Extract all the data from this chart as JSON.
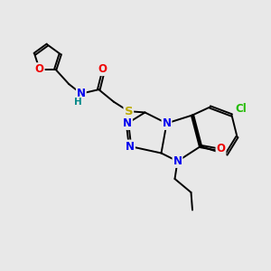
{
  "background_color": "#e8e8e8",
  "fig_size": [
    3.0,
    3.0
  ],
  "dpi": 100,
  "atom_colors": {
    "C": "#000000",
    "N": "#0000ee",
    "O": "#ee0000",
    "S": "#bbaa00",
    "Cl": "#22bb00",
    "H": "#008888"
  },
  "bond_color": "#000000",
  "bond_width": 1.4,
  "font_size_atoms": 8.5
}
